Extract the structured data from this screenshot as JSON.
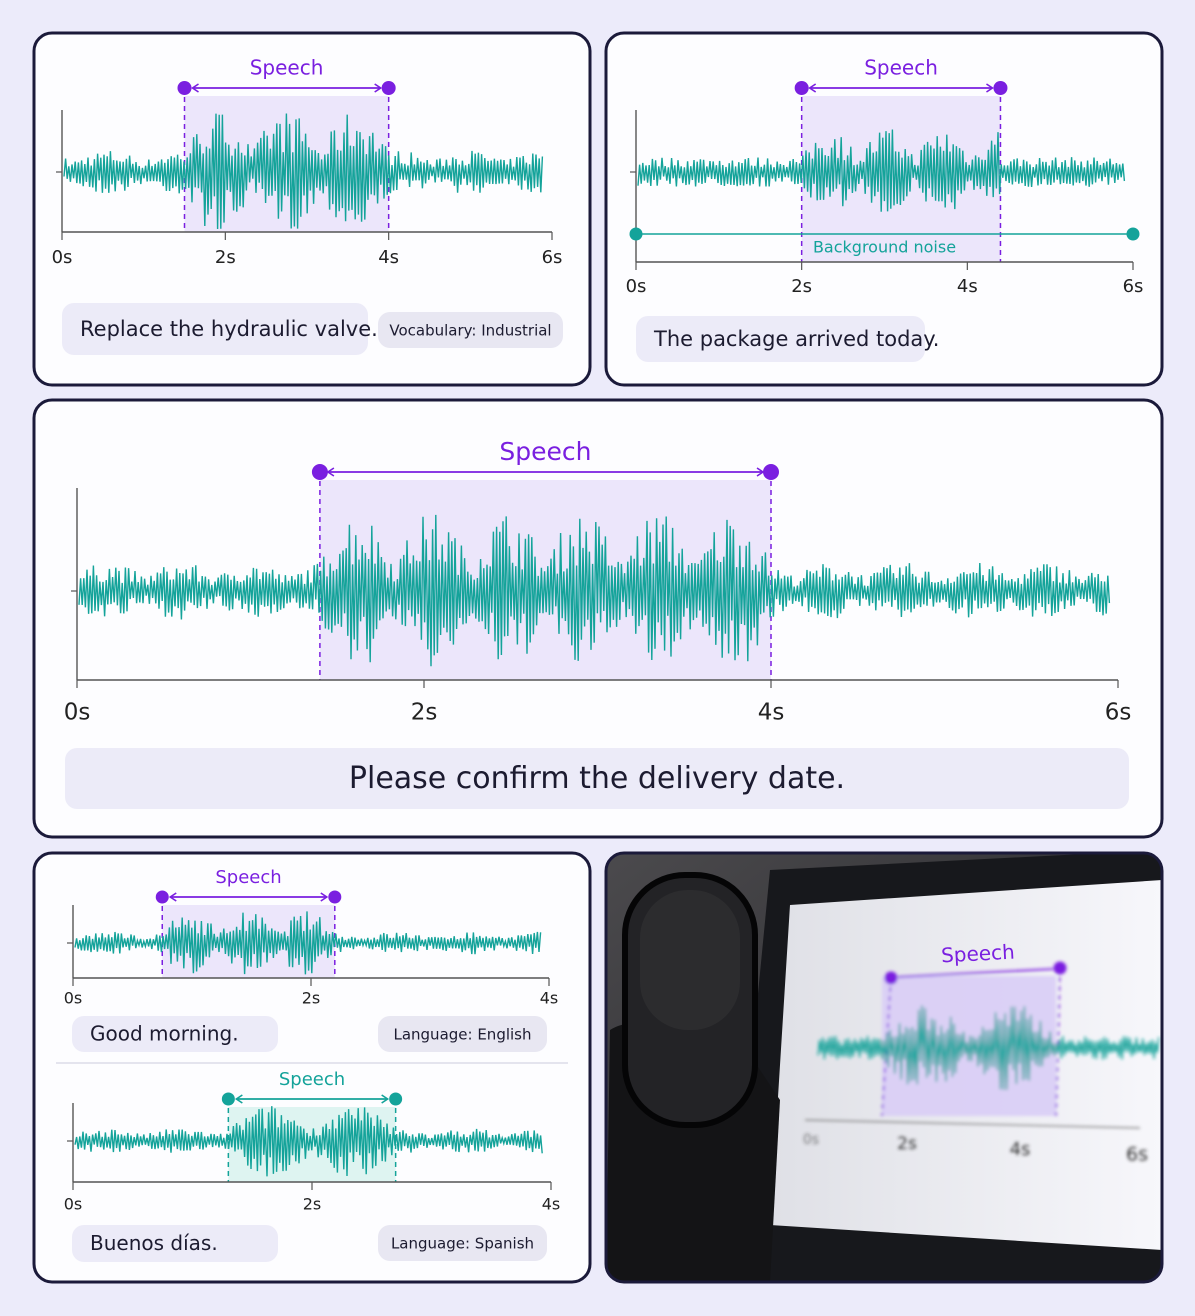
{
  "panels": [
    {
      "speech_label": "Speech",
      "speech": [
        1.5,
        4
      ],
      "xlim": [
        0,
        6
      ],
      "xticks": [
        {
          "value": 0,
          "label": "0s"
        },
        {
          "value": 2,
          "label": "2s"
        },
        {
          "value": 4,
          "label": "4s"
        },
        {
          "value": 6,
          "label": "6s"
        }
      ],
      "transcript": "Replace the hydraulic valve.",
      "tag": "Vocabulary: Industrial"
    },
    {
      "speech_label": "Speech",
      "speech": [
        2,
        4.4
      ],
      "xlim": [
        0,
        6
      ],
      "noise_label": "Background noise",
      "noise": [
        0,
        6
      ],
      "xticks": [
        {
          "value": 0,
          "label": "0s"
        },
        {
          "value": 2,
          "label": "2s"
        },
        {
          "value": 4,
          "label": "4s"
        },
        {
          "value": 6,
          "label": "6s"
        }
      ],
      "transcript": "The package arrived today."
    },
    {
      "speech_label": "Speech",
      "speech": [
        1.4,
        4
      ],
      "xlim": [
        0,
        6
      ],
      "xticks": [
        {
          "value": 0,
          "label": "0s"
        },
        {
          "value": 2,
          "label": "2s"
        },
        {
          "value": 4,
          "label": "4s"
        },
        {
          "value": 6,
          "label": "6s"
        }
      ],
      "transcript": "Please confirm the delivery date."
    },
    {
      "clips": [
        {
          "speech_label": "Speech",
          "speech": [
            0.75,
            2.2
          ],
          "xlim": [
            0,
            4
          ],
          "xticks": [
            {
              "value": 0,
              "label": "0s"
            },
            {
              "value": 2,
              "label": "2s"
            },
            {
              "value": 4,
              "label": "4s"
            }
          ],
          "transcript": "Good morning.",
          "tag": "Language: English"
        },
        {
          "speech_label": "Speech",
          "speech": [
            1.3,
            2.7
          ],
          "xlim": [
            0,
            4
          ],
          "xticks": [
            {
              "value": 0,
              "label": "0s"
            },
            {
              "value": 2,
              "label": "2s"
            },
            {
              "value": 4,
              "label": "4s"
            }
          ],
          "transcript": "Buenos días.",
          "tag": "Language: Spanish"
        }
      ]
    },
    {
      "photo_screen": {
        "speech_label": "Speech",
        "ticks": [
          "0s",
          "2s",
          "4s",
          "6s"
        ]
      }
    }
  ]
}
